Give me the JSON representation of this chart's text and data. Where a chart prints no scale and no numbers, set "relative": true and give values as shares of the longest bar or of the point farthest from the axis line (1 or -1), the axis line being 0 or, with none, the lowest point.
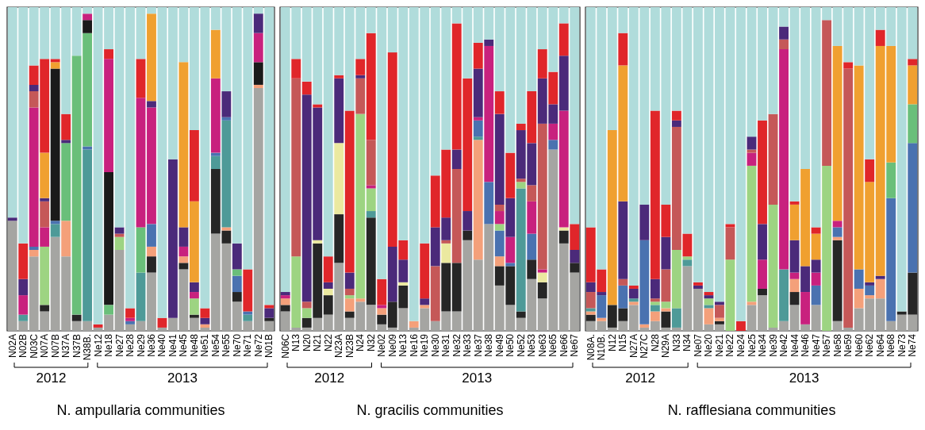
{
  "chart_data": [
    {
      "type": "bar",
      "stacked": true,
      "relative": true,
      "xlabel": "N. ampullaria communities",
      "categories": [
        "N02A",
        "N02B",
        "N03C",
        "N07A",
        "N07B",
        "N37A",
        "N37B",
        "N38B.",
        "Ne12",
        "Ne18",
        "Ne27",
        "Ne28",
        "Ne29",
        "Ne36",
        "Ne40",
        "Ne41",
        "Ne45",
        "Ne48",
        "Ne51",
        "Ne54",
        "Ne55",
        "Ne70",
        "Ne71",
        "Ne72",
        "N01B"
      ],
      "annotations": [
        "2012",
        "2013"
      ],
      "series": [
        {
          "color": "#a5a5a2",
          "values": [
            0.34,
            0.03,
            0.23,
            0.06,
            0.29,
            0.23,
            0.03,
            0.03,
            0.01,
            0.05,
            0.25,
            0.02,
            0.03,
            0.18,
            0.01,
            0.04,
            0.19,
            0.04,
            0.01,
            0.3,
            0.27,
            0.09,
            0.03,
            0.75,
            0.03
          ]
        },
        {
          "color": "#262626",
          "values": [
            0,
            0,
            0,
            0.02,
            0,
            0,
            0.02,
            0,
            0,
            0,
            0,
            0,
            0,
            0.05,
            0,
            0,
            0.02,
            0.01,
            0,
            0.2,
            0.04,
            0.03,
            0,
            0,
            0.01
          ]
        },
        {
          "color": "#f4a07a",
          "values": [
            0,
            0,
            0.02,
            0,
            0,
            0.11,
            0,
            0,
            0,
            0,
            0,
            0,
            0,
            0.03,
            0,
            0,
            0.02,
            0,
            0.01,
            0,
            0.01,
            0,
            0,
            0.01,
            0
          ]
        },
        {
          "color": "#4e9a98",
          "values": [
            0,
            0.02,
            0,
            0,
            0.04,
            0,
            0,
            0.53,
            0,
            0,
            0,
            0,
            0.15,
            0,
            0,
            0,
            0,
            0,
            0,
            0.04,
            0.33,
            0,
            0.02,
            0,
            0
          ]
        },
        {
          "color": "#4a72b0",
          "values": [
            0,
            0,
            0.01,
            0,
            0.01,
            0,
            0,
            0.01,
            0,
            0,
            0,
            0.01,
            0,
            0.07,
            0,
            0,
            0,
            0,
            0,
            0.01,
            0.01,
            0.05,
            0.01,
            0,
            0
          ]
        },
        {
          "color": "#9dd482",
          "values": [
            0,
            0,
            0,
            0.18,
            0,
            0,
            0,
            0,
            0,
            0,
            0.04,
            0,
            0,
            0,
            0,
            0,
            0,
            0.05,
            0,
            0,
            0,
            0,
            0,
            0,
            0
          ]
        },
        {
          "color": "#6abf7a",
          "values": [
            0,
            0,
            0,
            0,
            0,
            0.24,
            0.8,
            0.35,
            0,
            0.03,
            0,
            0,
            0.14,
            0,
            0,
            0,
            0,
            0,
            0,
            0,
            0,
            0.02,
            0,
            0,
            0
          ]
        },
        {
          "color": "#1a1a1a",
          "values": [
            0,
            0,
            0,
            0,
            0.47,
            0,
            0,
            0.04,
            0,
            0.41,
            0,
            0,
            0,
            0,
            0,
            0,
            0,
            0,
            0,
            0,
            0,
            0,
            0,
            0.07,
            0
          ]
        },
        {
          "color": "#c8217e",
          "values": [
            0,
            0.06,
            0.43,
            0.06,
            0,
            0,
            0,
            0.02,
            0,
            0.35,
            0,
            0.01,
            0.4,
            0.36,
            0,
            0,
            0.03,
            0.02,
            0,
            0.23,
            0,
            0,
            0,
            0.09,
            0
          ]
        },
        {
          "color": "#c55858",
          "values": [
            0,
            0,
            0.05,
            0.08,
            0,
            0,
            0,
            0,
            0,
            0,
            0.01,
            0,
            0,
            0,
            0,
            0,
            0,
            0,
            0,
            0,
            0,
            0,
            0,
            0,
            0
          ]
        },
        {
          "color": "#4b2a7a",
          "values": [
            0.01,
            0.05,
            0.02,
            0.01,
            0,
            0.01,
            0,
            0,
            0,
            0,
            0.02,
            0,
            0,
            0.02,
            0,
            0.49,
            0.06,
            0.03,
            0.02,
            0,
            0.08,
            0.08,
            0,
            0.06,
            0.03
          ]
        },
        {
          "color": "#f0a030",
          "values": [
            0,
            0,
            0,
            0.14,
            0.02,
            0,
            0,
            0,
            0,
            0,
            0,
            0,
            0,
            0.27,
            0,
            0,
            0.51,
            0.25,
            0,
            0.15,
            0,
            0,
            0,
            0,
            0
          ]
        },
        {
          "color": "#e0262a",
          "values": [
            0,
            0.11,
            0.06,
            0.29,
            0.01,
            0.08,
            0,
            0,
            0.01,
            0.03,
            0,
            0.03,
            0.12,
            0,
            0.03,
            0,
            0,
            0.22,
            0.03,
            0,
            0,
            0,
            0.13,
            0,
            0.01
          ]
        },
        {
          "color": "#b0dcdb",
          "values": [
            0.65,
            0.73,
            0.18,
            0.16,
            0.16,
            0.33,
            0.15,
            0.02,
            0.98,
            0.13,
            0.68,
            0.93,
            0.16,
            0.02,
            0.96,
            0.47,
            0.17,
            0.38,
            0.93,
            0.07,
            0.26,
            0.73,
            0.81,
            0.02,
            0.92
          ]
        }
      ]
    },
    {
      "type": "bar",
      "stacked": true,
      "relative": true,
      "xlabel": "N. gracilis communities",
      "categories": [
        "N06C",
        "N13",
        "N20",
        "N21",
        "N22",
        "N23A",
        "N23B",
        "N24",
        "N32",
        "Ne02",
        "Ne09",
        "Ne13",
        "Ne16",
        "Ne19",
        "Ne30",
        "Ne31",
        "Ne32",
        "Ne33",
        "Ne37",
        "Ne38",
        "Ne49",
        "Ne50",
        "Ne52",
        "Ne53",
        "Ne63",
        "Ne65",
        "Ne66",
        "Ne67"
      ],
      "annotations": [
        "2012",
        "2013"
      ],
      "series": [
        {
          "color": "#a5a5a2",
          "values": [
            0.06,
            0.01,
            0.01,
            0.04,
            0.05,
            0.21,
            0.04,
            0.09,
            0.08,
            0.02,
            0.01,
            0.07,
            0.01,
            0.07,
            0.03,
            0.06,
            0.06,
            0.28,
            0.22,
            0.33,
            0.14,
            0.08,
            0.04,
            0.16,
            0.1,
            0.56,
            0.27,
            0.18
          ]
        },
        {
          "color": "#262626",
          "values": [
            0.02,
            0,
            0.03,
            0.23,
            0.06,
            0.15,
            0.02,
            0,
            0.27,
            0.03,
            0.08,
            0.07,
            0,
            0,
            0,
            0.15,
            0.15,
            0.03,
            0,
            0,
            0.06,
            0.12,
            0.02,
            0.06,
            0.05,
            0,
            0.04,
            0.03
          ]
        },
        {
          "color": "#ebe9a0",
          "values": [
            0,
            0,
            0,
            0.01,
            0.02,
            0.22,
            0,
            0,
            0,
            0,
            0,
            0.01,
            0,
            0,
            0,
            0.06,
            0,
            0,
            0,
            0,
            0,
            0,
            0,
            0,
            0.03,
            0,
            0.01,
            0
          ]
        },
        {
          "color": "#f4a07a",
          "values": [
            0.02,
            0,
            0,
            0,
            0,
            0,
            0.04,
            0.01,
            0,
            0.02,
            0,
            0,
            0.02,
            0.01,
            0,
            0,
            0,
            0,
            0.37,
            0,
            0.03,
            0,
            0,
            0,
            0,
            0,
            0,
            0
          ]
        },
        {
          "color": "#4e9a98",
          "values": [
            0,
            0,
            0,
            0,
            0,
            0,
            0,
            0,
            0.02,
            0,
            0,
            0,
            0,
            0,
            0,
            0,
            0,
            0,
            0.01,
            0,
            0,
            0,
            0.38,
            0,
            0,
            0,
            0,
            0
          ]
        },
        {
          "color": "#4a72b0",
          "values": [
            0,
            0,
            0,
            0,
            0,
            0,
            0,
            0,
            0,
            0,
            0,
            0,
            0,
            0,
            0,
            0,
            0,
            0,
            0.05,
            0.13,
            0.08,
            0.01,
            0,
            0.08,
            0,
            0.03,
            0,
            0
          ]
        },
        {
          "color": "#9dd482",
          "values": [
            0,
            0.22,
            0.03,
            0,
            0,
            0,
            0.01,
            0.57,
            0.07,
            0,
            0,
            0,
            0,
            0,
            0,
            0,
            0,
            0,
            0,
            0,
            0.02,
            0,
            0.02,
            0,
            0,
            0,
            0,
            0
          ]
        },
        {
          "color": "#c8217e",
          "values": [
            0.01,
            0,
            0,
            0,
            0,
            0,
            0,
            0,
            0.01,
            0.01,
            0,
            0,
            0,
            0,
            0,
            0,
            0,
            0,
            0.01,
            0.42,
            0.04,
            0.08,
            0,
            0.1,
            0.01,
            0.05,
            0.36,
            0
          ]
        },
        {
          "color": "#c55858",
          "values": [
            0,
            0.55,
            0.02,
            0,
            0,
            0,
            0.02,
            0.11,
            0.14,
            0,
            0,
            0,
            0,
            0,
            0.17,
            0.01,
            0.29,
            0,
            0,
            0,
            0.02,
            0,
            0.01,
            0.05,
            0.45,
            0,
            0,
            0
          ]
        },
        {
          "color": "#4b2a7a",
          "values": [
            0.01,
            0,
            0.64,
            0.41,
            0.02,
            0.2,
            0.05,
            0.01,
            0,
            0,
            0.17,
            0.07,
            0,
            0.02,
            0.12,
            0.07,
            0.06,
            0.06,
            0.15,
            0.02,
            0.28,
            0.12,
            0.15,
            0.13,
            0.14,
            0.06,
            0.17,
            0.04
          ]
        },
        {
          "color": "#e0262a",
          "values": [
            0,
            0.06,
            0.04,
            0.01,
            0.08,
            0.01,
            0.5,
            0.05,
            0.33,
            0.08,
            0.6,
            0.06,
            0,
            0.17,
            0.16,
            0.21,
            0.39,
            0.41,
            0.08,
            0,
            0.07,
            0.14,
            0.02,
            0.16,
            0.09,
            0.1,
            0.1,
            0.08
          ]
        },
        {
          "color": "#b0dcdb",
          "values": [
            0.88,
            0.16,
            0.23,
            0.3,
            0.77,
            0.21,
            0.32,
            0.16,
            0.08,
            0.84,
            0.14,
            0.72,
            0.97,
            0.73,
            0.52,
            0.44,
            0.05,
            0.22,
            0.11,
            0.1,
            0.26,
            0.45,
            0.36,
            0.26,
            0.13,
            0.2,
            0.05,
            0.67
          ]
        }
      ]
    },
    {
      "type": "bar",
      "stacked": true,
      "relative": true,
      "xlabel": "N. rafflesiana communities",
      "categories": [
        "N08A.",
        "N10B.",
        "N12",
        "N15",
        "N27A",
        "N27C",
        "N28",
        "N29A",
        "N33",
        "N34",
        "Ne07",
        "Ne20",
        "Ne21",
        "Ne22",
        "Ne24",
        "Ne25",
        "Ne34",
        "Ne39",
        "Ne42",
        "Ne44",
        "Ne46",
        "Ne47",
        "Ne57",
        "Ne58",
        "Ne59",
        "Ne60",
        "Ne62",
        "Ne64",
        "Ne68",
        "Ne73",
        "Ne74"
      ],
      "annotations": [
        "2012",
        "2013"
      ],
      "series": [
        {
          "color": "#a5a5a2",
          "values": [
            0.03,
            0.03,
            0.01,
            0.03,
            0.08,
            0.01,
            0.03,
            0.01,
            0.01,
            0.2,
            0.13,
            0.02,
            0.02,
            0,
            0,
            0.08,
            0.11,
            0.01,
            0.03,
            0.08,
            0.02,
            0.08,
            0,
            0.03,
            0.01,
            0.07,
            0.1,
            0.1,
            0.03,
            0.05,
            0.05
          ]
        },
        {
          "color": "#262626",
          "values": [
            0.02,
            0,
            0.07,
            0.04,
            0,
            0,
            0,
            0.05,
            0,
            0,
            0,
            0,
            0.01,
            0,
            0,
            0,
            0.02,
            0,
            0,
            0.04,
            0,
            0,
            0,
            0.25,
            0,
            0,
            0,
            0,
            0,
            0.01,
            0.13
          ]
        },
        {
          "color": "#f4a07a",
          "values": [
            0.01,
            0.01,
            0,
            0,
            0.01,
            0.01,
            0.03,
            0.01,
            0,
            0,
            0,
            0.05,
            0.01,
            0,
            0,
            0.01,
            0,
            0,
            0,
            0.04,
            0,
            0,
            0,
            0.01,
            0,
            0.06,
            0.01,
            0.06,
            0,
            0,
            0
          ]
        },
        {
          "color": "#4e9a98",
          "values": [
            0.01,
            0,
            0,
            0,
            0.01,
            0,
            0.02,
            0,
            0.06,
            0.02,
            0,
            0.01,
            0,
            0,
            0,
            0,
            0,
            0,
            0.16,
            0,
            0,
            0,
            0,
            0,
            0,
            0,
            0,
            0,
            0,
            0,
            0
          ]
        },
        {
          "color": "#4a72b0",
          "values": [
            0,
            0.07,
            0,
            0.07,
            0,
            0.26,
            0,
            0,
            0,
            0,
            0,
            0,
            0,
            0,
            0,
            0,
            0,
            0,
            0,
            0,
            0,
            0.06,
            0,
            0.03,
            0,
            0.06,
            0.03,
            0,
            0.38,
            0,
            0.4
          ]
        },
        {
          "color": "#9dd482",
          "values": [
            0,
            0,
            0,
            0,
            0,
            0,
            0.01,
            0.02,
            0.18,
            0.01,
            0,
            0.02,
            0,
            0.22,
            0,
            0.42,
            0,
            0.38,
            0,
            0,
            0,
            0,
            0.51,
            0,
            0,
            0,
            0,
            0,
            0,
            0,
            0
          ]
        },
        {
          "color": "#6abf7a",
          "values": [
            0,
            0,
            0,
            0,
            0,
            0,
            0,
            0,
            0,
            0,
            0,
            0,
            0,
            0,
            0,
            0,
            0,
            0,
            0,
            0,
            0,
            0,
            0,
            0,
            0,
            0,
            0,
            0,
            0.11,
            0,
            0.12
          ]
        },
        {
          "color": "#c8217e",
          "values": [
            0,
            0,
            0,
            0,
            0,
            0,
            0,
            0,
            0,
            0,
            0,
            0,
            0,
            0,
            0,
            0.04,
            0.09,
            0,
            0.68,
            0.02,
            0.1,
            0.04,
            0,
            0.02,
            0,
            0,
            0,
            0,
            0,
            0,
            0
          ]
        },
        {
          "color": "#c55858",
          "values": [
            0.05,
            0,
            0,
            0.02,
            0,
            0,
            0.01,
            0.1,
            0.38,
            0,
            0,
            0,
            0.04,
            0.1,
            0,
            0.01,
            0,
            0.28,
            0.03,
            0,
            0,
            0,
            0.45,
            0,
            0.8,
            0,
            0,
            0,
            0,
            0,
            0
          ]
        },
        {
          "color": "#4b2a7a",
          "values": [
            0.03,
            0.01,
            0,
            0.24,
            0.03,
            0.11,
            0.06,
            0.1,
            0.02,
            0,
            0.01,
            0.01,
            0.01,
            0,
            0,
            0.04,
            0.11,
            0,
            0.04,
            0.1,
            0.08,
            0.04,
            0,
            0,
            0,
            0,
            0.01,
            0.01,
            0,
            0,
            0
          ]
        },
        {
          "color": "#f0a030",
          "values": [
            0,
            0,
            0.54,
            0.42,
            0,
            0,
            0,
            0,
            0,
            0,
            0,
            0,
            0,
            0,
            0,
            0,
            0,
            0,
            0,
            0.11,
            0.3,
            0.08,
            0,
            0.54,
            0,
            0.63,
            0.31,
            0.71,
            0.36,
            0,
            0.12
          ]
        },
        {
          "color": "#e0262a",
          "values": [
            0.17,
            0.07,
            0,
            0.1,
            0.01,
            0,
            0.52,
            0.1,
            0.03,
            0.07,
            0.01,
            0.01,
            0,
            0.01,
            0.03,
            0,
            0.32,
            0,
            0,
            0.01,
            0,
            0.02,
            0,
            0,
            0.02,
            0,
            0.07,
            0.05,
            0,
            0,
            0.02
          ]
        },
        {
          "color": "#b0dcdb",
          "values": [
            0.68,
            0.81,
            0.38,
            0.08,
            0.86,
            0.61,
            0.32,
            0.61,
            0.32,
            0.7,
            0.85,
            0.88,
            0.91,
            0.67,
            0.97,
            0.4,
            0.35,
            0.33,
            0.06,
            0.6,
            0.5,
            0.68,
            0.04,
            0.12,
            0.17,
            0.18,
            0.47,
            0.07,
            0.12,
            0.94,
            0.16
          ]
        }
      ]
    }
  ]
}
